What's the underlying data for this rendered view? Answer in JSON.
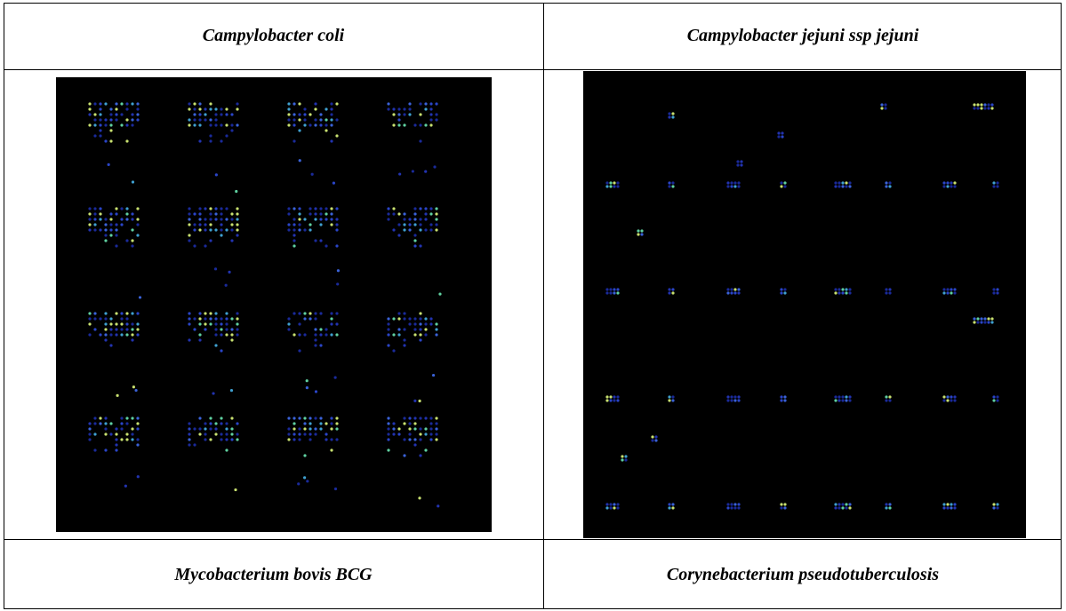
{
  "table": {
    "rows": [
      [
        "Campylobacter coli",
        "Campylobacter jejuni ssp jejuni"
      ],
      [
        "Mycobacterium bovis BCG",
        "Corynebacterium pseudotuberculosis"
      ]
    ]
  }
}
